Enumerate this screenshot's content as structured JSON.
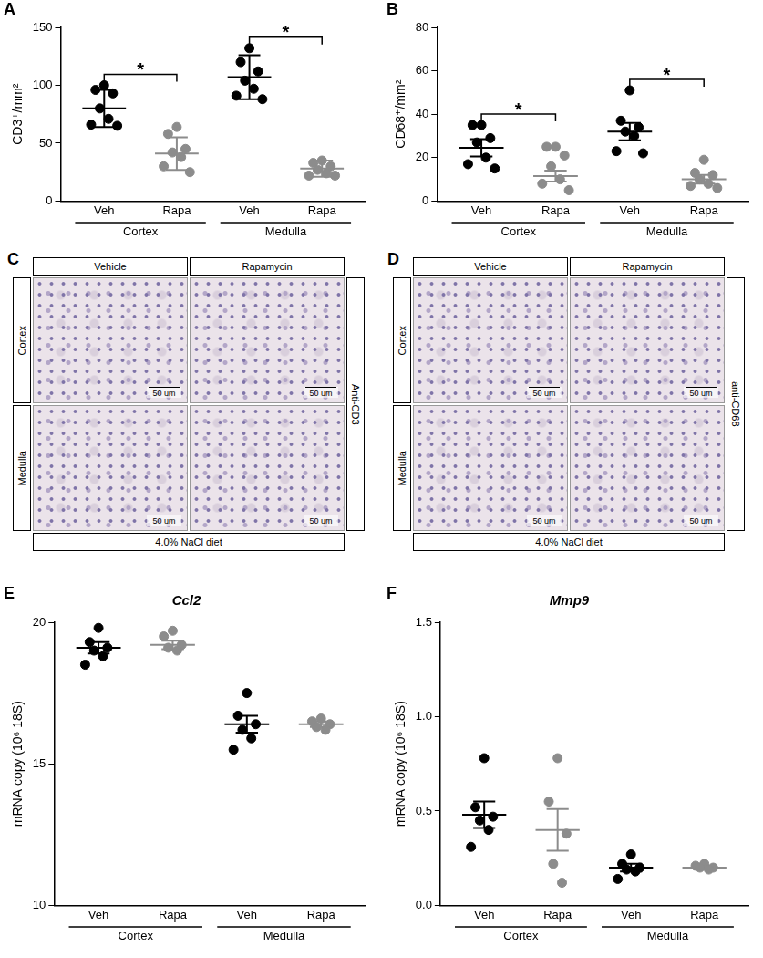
{
  "chart_data": [
    {
      "type": "scatter",
      "panel": "A",
      "y_label": "CD3⁺/mm²",
      "categories": [
        "Veh",
        "Rapa",
        "Veh",
        "Rapa"
      ],
      "groups": [
        "Cortex",
        "Medulla"
      ],
      "colors": [
        "#000000",
        "#8c8c8c",
        "#000000",
        "#8c8c8c"
      ],
      "marker": "circle",
      "points": [
        [
          100,
          96,
          93,
          80,
          71,
          66,
          65
        ],
        [
          64,
          58,
          45,
          42,
          38,
          30,
          25
        ],
        [
          132,
          120,
          112,
          104,
          97,
          91,
          88
        ],
        [
          35,
          33,
          30,
          27,
          24,
          22,
          22
        ]
      ],
      "means": [
        80,
        41,
        107,
        28
      ],
      "errors": [
        16,
        14,
        19,
        7
      ],
      "significance": [
        {
          "pair": [
            0,
            1
          ],
          "label": "*"
        },
        {
          "pair": [
            2,
            3
          ],
          "label": "*"
        }
      ],
      "ylim": [
        0,
        150
      ],
      "yticks": [
        0,
        50,
        100,
        150
      ],
      "grid": false
    },
    {
      "type": "scatter",
      "panel": "B",
      "y_label": "CD68⁺/mm²",
      "categories": [
        "Veh",
        "Rapa",
        "Veh",
        "Rapa"
      ],
      "groups": [
        "Cortex",
        "Medulla"
      ],
      "colors": [
        "#000000",
        "#8c8c8c",
        "#000000",
        "#8c8c8c"
      ],
      "marker": "circle",
      "points": [
        [
          35,
          35,
          29,
          27,
          20,
          17,
          15
        ],
        [
          25,
          25,
          21,
          16,
          10,
          8,
          5
        ],
        [
          51,
          37,
          34,
          32,
          30,
          23,
          22
        ],
        [
          19,
          13,
          12,
          10,
          8,
          7,
          6
        ]
      ],
      "means": [
        24.5,
        11.5,
        32,
        10
      ],
      "errors": [
        4,
        2.5,
        4,
        2
      ],
      "significance": [
        {
          "pair": [
            0,
            1
          ],
          "label": "*"
        },
        {
          "pair": [
            2,
            3
          ],
          "label": "*"
        }
      ],
      "ylim": [
        0,
        80
      ],
      "yticks": [
        0,
        20,
        40,
        60,
        80
      ],
      "grid": false
    },
    {
      "type": "scatter",
      "panel": "E",
      "title": "Ccl2",
      "y_label": "mRNA copy (10⁶ 18S)",
      "categories": [
        "Veh",
        "Rapa",
        "Veh",
        "Rapa"
      ],
      "groups": [
        "Cortex",
        "Medulla"
      ],
      "colors": [
        "#000000",
        "#8c8c8c",
        "#000000",
        "#8c8c8c"
      ],
      "marker": "circle",
      "points": [
        [
          19.8,
          19.3,
          19.1,
          19.0,
          18.8,
          18.5
        ],
        [
          19.7,
          19.5,
          19.2,
          19.1,
          19.0
        ],
        [
          17.5,
          16.7,
          16.4,
          16.2,
          15.9,
          15.5
        ],
        [
          16.6,
          16.5,
          16.4,
          16.3,
          16.2
        ]
      ],
      "means": [
        19.1,
        19.2,
        16.4,
        16.4
      ],
      "errors": [
        0.2,
        0.15,
        0.3,
        0.1
      ],
      "significance": [],
      "ylim": [
        10,
        20
      ],
      "yticks": [
        10,
        15,
        20
      ],
      "grid": false
    },
    {
      "type": "scatter",
      "panel": "F",
      "title": "Mmp9",
      "y_label": "mRNA copy (10⁶ 18S)",
      "categories": [
        "Veh",
        "Rapa",
        "Veh",
        "Rapa"
      ],
      "groups": [
        "Cortex",
        "Medulla"
      ],
      "colors": [
        "#000000",
        "#8c8c8c",
        "#000000",
        "#8c8c8c"
      ],
      "marker": "circle",
      "points": [
        [
          0.78,
          0.52,
          0.47,
          0.45,
          0.4,
          0.31
        ],
        [
          0.78,
          0.55,
          0.38,
          0.22,
          0.12
        ],
        [
          0.27,
          0.22,
          0.2,
          0.19,
          0.18,
          0.14
        ],
        [
          0.22,
          0.21,
          0.2,
          0.2,
          0.19
        ]
      ],
      "means": [
        0.48,
        0.4,
        0.2,
        0.2
      ],
      "errors": [
        0.07,
        0.11,
        0.02,
        0.01
      ],
      "significance": [],
      "ylim": [
        0,
        1.5
      ],
      "yticks": [
        {
          "value": 0,
          "label": "0.0"
        },
        0.5,
        {
          "value": 1,
          "label": "1.0"
        },
        1.5
      ],
      "grid": false
    }
  ],
  "images": [
    {
      "panel": "C",
      "columns": [
        "Vehicle",
        "Rapamycin"
      ],
      "rows": [
        "Cortex",
        "Medulla"
      ],
      "side_label": "Anti-CD3",
      "footer": "4.0% NaCl diet",
      "scale_bar": "50 um"
    },
    {
      "panel": "D",
      "columns": [
        "Vehicle",
        "Rapamycin"
      ],
      "rows": [
        "Cortex",
        "Medulla"
      ],
      "side_label": "anti-CD68",
      "footer": "4.0% NaCl diet",
      "scale_bar": "50 um"
    }
  ]
}
